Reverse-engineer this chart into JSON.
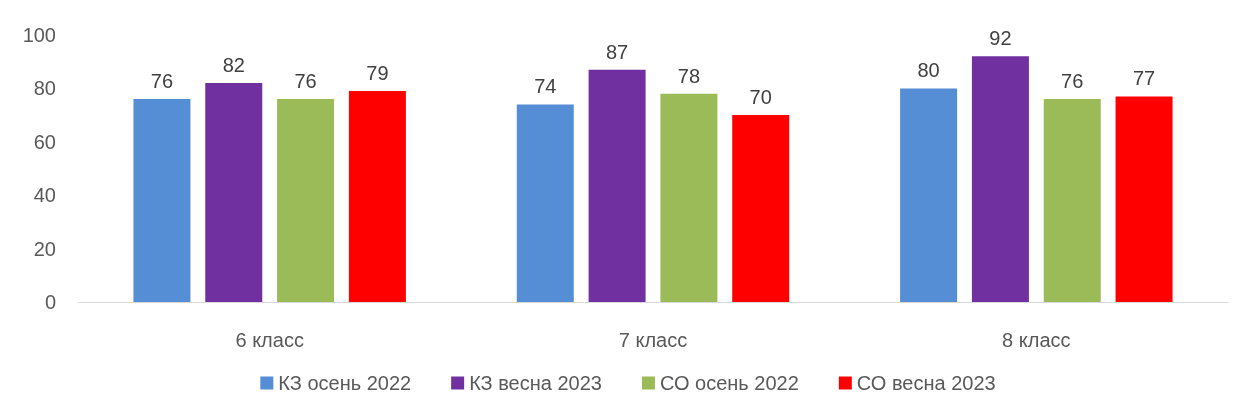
{
  "chart_data": {
    "type": "bar",
    "categories": [
      "6 класс",
      "7 класс",
      "8 класс"
    ],
    "series": [
      {
        "name": "КЗ осень 2022",
        "color": "#558ed5",
        "values": [
          76,
          74,
          80
        ]
      },
      {
        "name": "КЗ весна 2023",
        "color": "#7030a0",
        "values": [
          82,
          87,
          92
        ]
      },
      {
        "name": "СО осень 2022",
        "color": "#9bbb59",
        "values": [
          76,
          78,
          76
        ]
      },
      {
        "name": "СО весна 2023",
        "color": "#ff0000",
        "values": [
          79,
          70,
          77
        ]
      }
    ],
    "ylim": [
      0,
      100
    ],
    "yticks": [
      0,
      20,
      40,
      60,
      80,
      100
    ],
    "grid": false,
    "legend": "bottom",
    "data_labels": true
  }
}
